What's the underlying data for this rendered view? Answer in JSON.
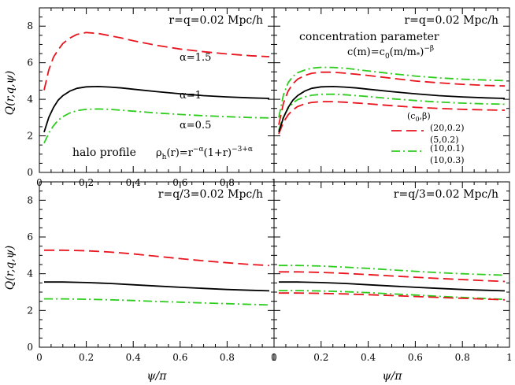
{
  "chart_data": [
    {
      "type": "line",
      "panel": "top-left",
      "title": "r=q=0.02 Mpc/h",
      "xlabel": "",
      "ylabel": "Q(r,q,ψ)",
      "xlim": [
        0,
        1
      ],
      "ylim": [
        0,
        9
      ],
      "xticks": [
        "0",
        "0.2",
        "0.4",
        "0.6",
        "0.8",
        "1"
      ],
      "yticks": [
        "0",
        "2",
        "4",
        "6",
        "8"
      ],
      "annotations": [
        "α=1.5",
        "α=1",
        "α=0.5",
        "halo profile",
        "ρh(r)=r^{−α}(1+r)^{−3+α}"
      ],
      "series": [
        {
          "name": "α=1.5",
          "style": "dashed",
          "color": "#e8141e",
          "x": [
            0.02,
            0.04,
            0.06,
            0.08,
            0.1,
            0.13,
            0.16,
            0.2,
            0.25,
            0.3,
            0.35,
            0.4,
            0.5,
            0.6,
            0.7,
            0.8,
            0.9,
            0.98
          ],
          "y": [
            4.5,
            5.6,
            6.3,
            6.7,
            7.05,
            7.35,
            7.55,
            7.65,
            7.6,
            7.48,
            7.35,
            7.2,
            6.95,
            6.75,
            6.6,
            6.48,
            6.38,
            6.33
          ]
        },
        {
          "name": "α=1",
          "style": "solid",
          "color": "#000000",
          "x": [
            0.02,
            0.04,
            0.06,
            0.08,
            0.1,
            0.13,
            0.16,
            0.2,
            0.25,
            0.3,
            0.35,
            0.4,
            0.5,
            0.6,
            0.7,
            0.8,
            0.9,
            0.98
          ],
          "y": [
            2.2,
            3.0,
            3.55,
            3.95,
            4.2,
            4.45,
            4.6,
            4.68,
            4.7,
            4.67,
            4.62,
            4.55,
            4.42,
            4.3,
            4.2,
            4.13,
            4.08,
            4.05
          ]
        },
        {
          "name": "α=0.5",
          "style": "dashdot",
          "color": "#2ecc1e",
          "x": [
            0.02,
            0.04,
            0.06,
            0.08,
            0.1,
            0.13,
            0.16,
            0.2,
            0.25,
            0.3,
            0.35,
            0.4,
            0.5,
            0.6,
            0.7,
            0.8,
            0.9,
            0.98
          ],
          "y": [
            1.6,
            2.15,
            2.55,
            2.85,
            3.05,
            3.25,
            3.38,
            3.45,
            3.47,
            3.45,
            3.4,
            3.35,
            3.25,
            3.17,
            3.1,
            3.05,
            3.0,
            2.98
          ]
        }
      ]
    },
    {
      "type": "line",
      "panel": "top-right",
      "title": "r=q=0.02 Mpc/h",
      "xlabel": "",
      "ylabel": "",
      "xlim": [
        0,
        1
      ],
      "ylim": [
        0,
        9
      ],
      "xticks": [],
      "yticks": [],
      "annotations": [
        "concentration parameter",
        "c(m)=c0(m/m*)^{−β}"
      ],
      "legend_title": "(c0,β)",
      "legend_position": "right",
      "series": [
        {
          "name": "(20,0.2)",
          "style": "dashed",
          "color": "#e8141e",
          "x": [
            0.02,
            0.04,
            0.06,
            0.08,
            0.1,
            0.13,
            0.16,
            0.2,
            0.25,
            0.3,
            0.35,
            0.4,
            0.5,
            0.6,
            0.7,
            0.8,
            0.9,
            0.98
          ],
          "y": [
            2.6,
            3.8,
            4.45,
            4.85,
            5.1,
            5.3,
            5.42,
            5.48,
            5.48,
            5.43,
            5.37,
            5.3,
            5.15,
            5.0,
            4.9,
            4.82,
            4.76,
            4.73
          ]
        },
        {
          "name": "(5,0.2)",
          "style": "dashed",
          "color": "#e8141e",
          "x": [
            0.02,
            0.04,
            0.06,
            0.08,
            0.1,
            0.13,
            0.16,
            0.2,
            0.25,
            0.3,
            0.35,
            0.4,
            0.5,
            0.6,
            0.7,
            0.8,
            0.9,
            0.98
          ],
          "y": [
            2.1,
            2.75,
            3.15,
            3.42,
            3.6,
            3.75,
            3.83,
            3.87,
            3.87,
            3.84,
            3.8,
            3.75,
            3.65,
            3.56,
            3.5,
            3.45,
            3.42,
            3.4
          ]
        },
        {
          "name": "(10,0.1)",
          "style": "dashdot",
          "color": "#2ecc1e",
          "x": [
            0.02,
            0.04,
            0.06,
            0.08,
            0.1,
            0.13,
            0.16,
            0.2,
            0.25,
            0.3,
            0.35,
            0.4,
            0.5,
            0.6,
            0.7,
            0.8,
            0.9,
            0.98
          ],
          "y": [
            3.0,
            4.25,
            4.9,
            5.25,
            5.45,
            5.6,
            5.7,
            5.75,
            5.74,
            5.7,
            5.63,
            5.55,
            5.4,
            5.27,
            5.17,
            5.1,
            5.05,
            5.02
          ]
        },
        {
          "name": "(10,0.3)",
          "style": "dashdot",
          "color": "#2ecc1e",
          "x": [
            0.02,
            0.04,
            0.06,
            0.08,
            0.1,
            0.13,
            0.16,
            0.2,
            0.25,
            0.3,
            0.35,
            0.4,
            0.5,
            0.6,
            0.7,
            0.8,
            0.9,
            0.98
          ],
          "y": [
            2.3,
            3.05,
            3.5,
            3.8,
            3.98,
            4.13,
            4.22,
            4.27,
            4.28,
            4.25,
            4.2,
            4.15,
            4.03,
            3.93,
            3.85,
            3.79,
            3.75,
            3.73
          ]
        },
        {
          "name": "",
          "style": "solid",
          "color": "#000000",
          "x": [
            0.02,
            0.04,
            0.06,
            0.08,
            0.1,
            0.13,
            0.16,
            0.2,
            0.25,
            0.3,
            0.35,
            0.4,
            0.5,
            0.6,
            0.7,
            0.8,
            0.9,
            0.98
          ],
          "y": [
            2.2,
            3.0,
            3.55,
            3.95,
            4.2,
            4.45,
            4.6,
            4.68,
            4.7,
            4.67,
            4.62,
            4.55,
            4.42,
            4.3,
            4.2,
            4.13,
            4.08,
            4.05
          ]
        }
      ]
    },
    {
      "type": "line",
      "panel": "bottom-left",
      "title": "r=q/3=0.02 Mpc/h",
      "xlabel": "ψ/π",
      "ylabel": "Q(r,q,ψ)",
      "xlim": [
        0,
        1
      ],
      "ylim": [
        0,
        9
      ],
      "xticks": [
        "0",
        "0.2",
        "0.4",
        "0.6",
        "0.8",
        "1"
      ],
      "yticks": [
        "0",
        "2",
        "4",
        "6",
        "8"
      ],
      "series": [
        {
          "name": "",
          "style": "dashed",
          "color": "#e8141e",
          "x": [
            0.02,
            0.1,
            0.2,
            0.3,
            0.4,
            0.5,
            0.6,
            0.7,
            0.8,
            0.9,
            0.98
          ],
          "y": [
            5.28,
            5.28,
            5.25,
            5.18,
            5.08,
            4.95,
            4.82,
            4.7,
            4.6,
            4.5,
            4.45
          ]
        },
        {
          "name": "",
          "style": "solid",
          "color": "#000000",
          "x": [
            0.02,
            0.1,
            0.2,
            0.3,
            0.4,
            0.5,
            0.6,
            0.7,
            0.8,
            0.9,
            0.98
          ],
          "y": [
            3.55,
            3.55,
            3.52,
            3.47,
            3.4,
            3.33,
            3.26,
            3.2,
            3.14,
            3.1,
            3.07
          ]
        },
        {
          "name": "",
          "style": "dashdot",
          "color": "#2ecc1e",
          "x": [
            0.02,
            0.1,
            0.2,
            0.3,
            0.4,
            0.5,
            0.6,
            0.7,
            0.8,
            0.9,
            0.98
          ],
          "y": [
            2.63,
            2.63,
            2.61,
            2.58,
            2.54,
            2.49,
            2.45,
            2.41,
            2.37,
            2.33,
            2.3
          ]
        }
      ]
    },
    {
      "type": "line",
      "panel": "bottom-right",
      "title": "r=q/3=0.02 Mpc/h",
      "xlabel": "ψ/π",
      "ylabel": "",
      "xlim": [
        0,
        1
      ],
      "ylim": [
        0,
        9
      ],
      "xticks": [
        "0",
        "0.2",
        "0.4",
        "0.6",
        "0.8",
        "1"
      ],
      "yticks": [],
      "series": [
        {
          "name": "",
          "style": "dashdot",
          "color": "#2ecc1e",
          "x": [
            0.02,
            0.1,
            0.2,
            0.3,
            0.4,
            0.5,
            0.6,
            0.7,
            0.8,
            0.9,
            0.98
          ],
          "y": [
            4.45,
            4.45,
            4.42,
            4.36,
            4.29,
            4.21,
            4.13,
            4.06,
            4.0,
            3.95,
            3.92
          ]
        },
        {
          "name": "",
          "style": "dashed",
          "color": "#e8141e",
          "x": [
            0.02,
            0.1,
            0.2,
            0.3,
            0.4,
            0.5,
            0.6,
            0.7,
            0.8,
            0.9,
            0.98
          ],
          "y": [
            4.1,
            4.1,
            4.07,
            4.02,
            3.95,
            3.88,
            3.81,
            3.74,
            3.68,
            3.62,
            3.58
          ]
        },
        {
          "name": "",
          "style": "solid",
          "color": "#000000",
          "x": [
            0.02,
            0.1,
            0.2,
            0.3,
            0.4,
            0.5,
            0.6,
            0.7,
            0.8,
            0.9,
            0.98
          ],
          "y": [
            3.55,
            3.55,
            3.52,
            3.47,
            3.4,
            3.33,
            3.26,
            3.2,
            3.14,
            3.1,
            3.07
          ]
        },
        {
          "name": "",
          "style": "dashdot",
          "color": "#2ecc1e",
          "x": [
            0.02,
            0.1,
            0.2,
            0.3,
            0.4,
            0.5,
            0.6,
            0.7,
            0.8,
            0.9,
            0.98
          ],
          "y": [
            3.08,
            3.08,
            3.06,
            3.02,
            2.97,
            2.9,
            2.84,
            2.77,
            2.71,
            2.65,
            2.6
          ]
        },
        {
          "name": "",
          "style": "dashed",
          "color": "#e8141e",
          "x": [
            0.02,
            0.1,
            0.2,
            0.3,
            0.4,
            0.5,
            0.6,
            0.7,
            0.8,
            0.9,
            0.98
          ],
          "y": [
            2.95,
            2.95,
            2.93,
            2.9,
            2.86,
            2.81,
            2.76,
            2.71,
            2.66,
            2.62,
            2.58
          ]
        }
      ]
    }
  ]
}
